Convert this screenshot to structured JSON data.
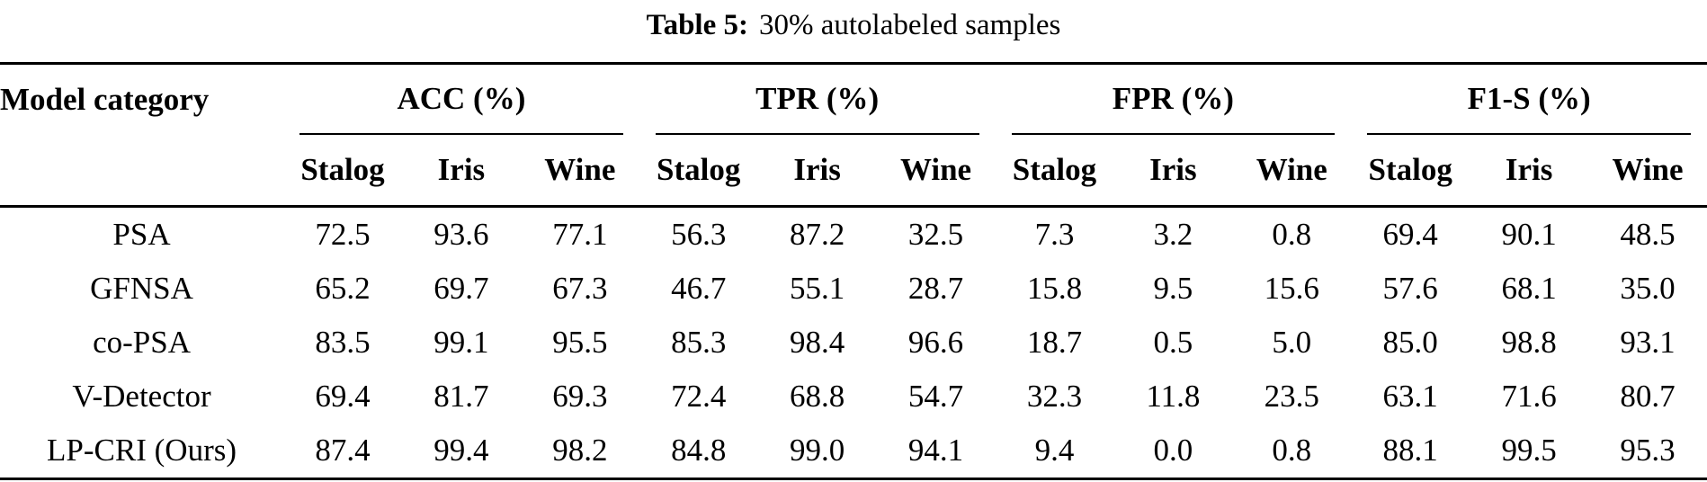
{
  "title": {
    "label": "Table 5:",
    "text": "30% autolabeled samples"
  },
  "table": {
    "row_header": "Model category",
    "groups": [
      {
        "label": "ACC (%)"
      },
      {
        "label": "TPR (%)"
      },
      {
        "label": "FPR (%)"
      },
      {
        "label": "F1-S (%)"
      }
    ],
    "subcolumns": [
      "Stalog",
      "Iris",
      "Wine"
    ],
    "rows": [
      {
        "model": "PSA",
        "values": [
          "72.5",
          "93.6",
          "77.1",
          "56.3",
          "87.2",
          "32.5",
          "7.3",
          "3.2",
          "0.8",
          "69.4",
          "90.1",
          "48.5"
        ],
        "bold": []
      },
      {
        "model": "GFNSA",
        "values": [
          "65.2",
          "69.7",
          "67.3",
          "46.7",
          "55.1",
          "28.7",
          "15.8",
          "9.5",
          "15.6",
          "57.6",
          "68.1",
          "35.0"
        ],
        "bold": []
      },
      {
        "model": "co-PSA",
        "values": [
          "83.5",
          "99.1",
          "95.5",
          "85.3",
          "98.4",
          "96.6",
          "18.7",
          "0.5",
          "5.0",
          "85.0",
          "98.8",
          "93.1"
        ],
        "bold": [
          5
        ]
      },
      {
        "model": "V-Detector",
        "values": [
          "69.4",
          "81.7",
          "69.3",
          "72.4",
          "68.8",
          "54.7",
          "32.3",
          "11.8",
          "23.5",
          "63.1",
          "71.6",
          "80.7"
        ],
        "bold": []
      },
      {
        "model": "LP-CRI (Ours)",
        "values": [
          "87.4",
          "99.4",
          "98.2",
          "84.8",
          "99.0",
          "94.1",
          "9.4",
          "0.0",
          "0.8",
          "88.1",
          "99.5",
          "95.3"
        ],
        "bold": [
          0,
          1,
          2,
          9,
          10,
          11
        ]
      }
    ]
  },
  "colors": {
    "text": "#000000",
    "background": "#ffffff",
    "rule": "#000000"
  }
}
